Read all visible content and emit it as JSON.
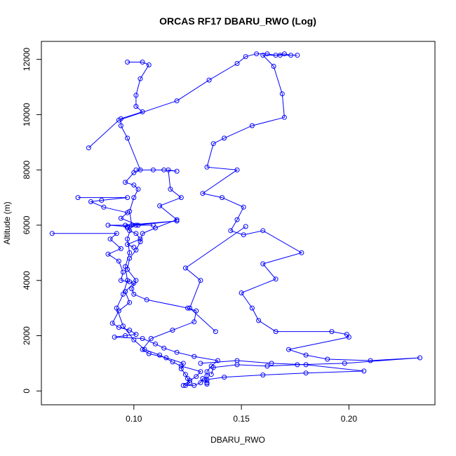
{
  "chart_data": {
    "type": "line",
    "title": "ORCAS RF17 DBARU_RWO (Log)",
    "xlabel": "DBARU_RWO",
    "ylabel": "Altitude (m)",
    "xlim": [
      0.057,
      0.24
    ],
    "ylim": [
      -500,
      12650
    ],
    "x_ticks": [
      0.1,
      0.15,
      0.2
    ],
    "x_tick_labels": [
      "0.10",
      "0.15",
      "0.20"
    ],
    "y_ticks": [
      0,
      2000,
      4000,
      6000,
      8000,
      10000,
      12000
    ],
    "y_tick_labels": [
      "0",
      "2000",
      "4000",
      "6000",
      "8000",
      "10000",
      "12000"
    ],
    "grid": false,
    "marker": "open-circle",
    "color": "#0000ff",
    "series": [
      {
        "points": [
          [
            0.123,
            200
          ],
          [
            0.126,
            380
          ],
          [
            0.129,
            520
          ],
          [
            0.131,
            700
          ],
          [
            0.122,
            900
          ],
          [
            0.118,
            1050
          ],
          [
            0.112,
            1300
          ],
          [
            0.105,
            1500
          ],
          [
            0.1,
            1850
          ],
          [
            0.095,
            2350
          ],
          [
            0.092,
            3000
          ],
          [
            0.095,
            3500
          ],
          [
            0.097,
            4000
          ],
          [
            0.096,
            4500
          ],
          [
            0.098,
            5000
          ],
          [
            0.097,
            5500
          ],
          [
            0.099,
            6000
          ],
          [
            0.098,
            6500
          ],
          [
            0.1,
            7000
          ],
          [
            0.102,
            7300
          ],
          [
            0.1,
            7450
          ],
          [
            0.096,
            7550
          ],
          [
            0.1,
            7900
          ],
          [
            0.103,
            8000
          ],
          [
            0.097,
            9150
          ],
          [
            0.094,
            9600
          ],
          [
            0.094,
            9850
          ],
          [
            0.104,
            10100
          ],
          [
            0.101,
            10300
          ],
          [
            0.101,
            10700
          ],
          [
            0.103,
            11300
          ],
          [
            0.107,
            11800
          ],
          [
            0.104,
            11900
          ],
          [
            0.097,
            11900
          ]
        ]
      },
      {
        "points": [
          [
            0.101,
            8000
          ],
          [
            0.109,
            8000
          ],
          [
            0.114,
            8000
          ],
          [
            0.12,
            7950
          ],
          [
            0.116,
            8000
          ],
          [
            0.117,
            7300
          ],
          [
            0.122,
            7000
          ],
          [
            0.112,
            6700
          ],
          [
            0.12,
            6200
          ],
          [
            0.11,
            5900
          ],
          [
            0.104,
            5700
          ],
          [
            0.103,
            5400
          ],
          [
            0.101,
            5100
          ],
          [
            0.098,
            4800
          ],
          [
            0.097,
            4400
          ],
          [
            0.101,
            4000
          ],
          [
            0.099,
            3700
          ],
          [
            0.1,
            3500
          ],
          [
            0.106,
            3300
          ],
          [
            0.125,
            3000
          ],
          [
            0.129,
            2900
          ],
          [
            0.128,
            2500
          ],
          [
            0.118,
            2200
          ],
          [
            0.108,
            1900
          ],
          [
            0.104,
            1500
          ],
          [
            0.107,
            1350
          ],
          [
            0.115,
            1200
          ],
          [
            0.123,
            1000
          ],
          [
            0.122,
            800
          ],
          [
            0.124,
            600
          ],
          [
            0.125,
            450
          ],
          [
            0.126,
            300
          ],
          [
            0.124,
            200
          ],
          [
            0.128,
            200
          ],
          [
            0.131,
            300
          ],
          [
            0.132,
            450
          ]
        ]
      },
      {
        "points": [
          [
            0.062,
            5700
          ],
          [
            0.092,
            5700
          ],
          [
            0.089,
            5500
          ],
          [
            0.094,
            5150
          ],
          [
            0.088,
            4950
          ],
          [
            0.093,
            4700
          ],
          [
            0.095,
            4300
          ],
          [
            0.094,
            4000
          ],
          [
            0.098,
            3950
          ],
          [
            0.1,
            3900
          ],
          [
            0.096,
            3600
          ],
          [
            0.098,
            3200
          ],
          [
            0.093,
            2900
          ],
          [
            0.09,
            2450
          ],
          [
            0.093,
            2300
          ],
          [
            0.098,
            2200
          ],
          [
            0.101,
            2050
          ],
          [
            0.096,
            2000
          ],
          [
            0.091,
            1950
          ],
          [
            0.104,
            1900
          ],
          [
            0.11,
            1700
          ],
          [
            0.114,
            1550
          ],
          [
            0.12,
            1400
          ],
          [
            0.128,
            1250
          ],
          [
            0.139,
            1100
          ],
          [
            0.136,
            900
          ],
          [
            0.134,
            700
          ],
          [
            0.134,
            550
          ],
          [
            0.134,
            400
          ],
          [
            0.134,
            250
          ]
        ]
      },
      {
        "points": [
          [
            0.074,
            7000
          ],
          [
            0.097,
            7000
          ],
          [
            0.085,
            6900
          ],
          [
            0.08,
            6850
          ],
          [
            0.086,
            6650
          ],
          [
            0.097,
            6450
          ],
          [
            0.094,
            6250
          ],
          [
            0.102,
            6000
          ],
          [
            0.088,
            6000
          ],
          [
            0.097,
            5950
          ],
          [
            0.098,
            5800
          ],
          [
            0.101,
            5700
          ],
          [
            0.103,
            5500
          ],
          [
            0.097,
            5300
          ],
          [
            0.1,
            5200
          ]
        ]
      },
      {
        "points": [
          [
            0.079,
            8800
          ],
          [
            0.093,
            9800
          ],
          [
            0.12,
            10500
          ],
          [
            0.135,
            11250
          ],
          [
            0.148,
            11850
          ],
          [
            0.152,
            12100
          ],
          [
            0.157,
            12200
          ],
          [
            0.162,
            12200
          ],
          [
            0.166,
            12150
          ],
          [
            0.17,
            12200
          ],
          [
            0.173,
            12150
          ],
          [
            0.176,
            12150
          ],
          [
            0.168,
            12150
          ],
          [
            0.16,
            12150
          ],
          [
            0.165,
            11750
          ],
          [
            0.169,
            10750
          ],
          [
            0.17,
            9900
          ],
          [
            0.155,
            9600
          ],
          [
            0.142,
            9150
          ],
          [
            0.137,
            8950
          ],
          [
            0.134,
            8100
          ],
          [
            0.148,
            8000
          ],
          [
            0.132,
            7150
          ],
          [
            0.141,
            7000
          ],
          [
            0.151,
            6650
          ],
          [
            0.148,
            6200
          ],
          [
            0.145,
            5800
          ],
          [
            0.151,
            5650
          ],
          [
            0.16,
            5800
          ],
          [
            0.178,
            5000
          ],
          [
            0.16,
            4600
          ],
          [
            0.166,
            4050
          ],
          [
            0.15,
            3550
          ],
          [
            0.155,
            3000
          ],
          [
            0.158,
            2550
          ],
          [
            0.166,
            2150
          ],
          [
            0.192,
            2150
          ],
          [
            0.199,
            2050
          ],
          [
            0.2,
            1950
          ],
          [
            0.172,
            1500
          ],
          [
            0.18,
            1300
          ],
          [
            0.19,
            1150
          ],
          [
            0.21,
            1100
          ],
          [
            0.233,
            1200
          ],
          [
            0.198,
            1000
          ],
          [
            0.176,
            950
          ],
          [
            0.162,
            900
          ],
          [
            0.148,
            950
          ],
          [
            0.137,
            850
          ],
          [
            0.136,
            600
          ]
        ]
      },
      {
        "points": [
          [
            0.109,
            6000
          ],
          [
            0.096,
            6000
          ],
          [
            0.12,
            6150
          ],
          [
            0.101,
            6000
          ],
          [
            0.097,
            5900
          ]
        ]
      },
      {
        "points": [
          [
            0.138,
            2150
          ],
          [
            0.126,
            3000
          ],
          [
            0.131,
            4000
          ],
          [
            0.124,
            4450
          ],
          [
            0.152,
            5950
          ]
        ]
      },
      {
        "points": [
          [
            0.131,
            1000
          ],
          [
            0.148,
            1100
          ],
          [
            0.164,
            1000
          ],
          [
            0.18,
            950
          ],
          [
            0.207,
            720
          ],
          [
            0.18,
            650
          ],
          [
            0.16,
            580
          ],
          [
            0.142,
            500
          ],
          [
            0.133,
            400
          ],
          [
            0.134,
            300
          ]
        ]
      }
    ]
  }
}
